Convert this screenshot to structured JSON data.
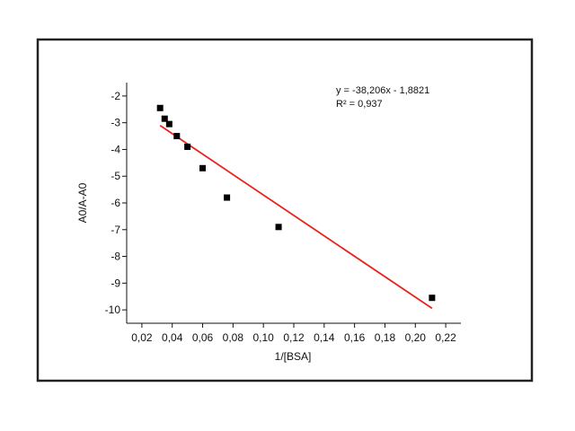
{
  "chart_data": {
    "type": "scatter",
    "title": "",
    "xlabel": "1/[BSA]",
    "ylabel": "A0/A-A0",
    "xlim": [
      0.01,
      0.23
    ],
    "ylim": [
      -10.5,
      -1.5
    ],
    "x_ticks": [
      0.02,
      0.04,
      0.06,
      0.08,
      0.1,
      0.12,
      0.14,
      0.16,
      0.18,
      0.2,
      0.22
    ],
    "x_tick_labels": [
      "0,02",
      "0,04",
      "0,06",
      "0,08",
      "0,10",
      "0,12",
      "0,14",
      "0,16",
      "0,18",
      "0,20",
      "0,22"
    ],
    "y_ticks": [
      -2,
      -3,
      -4,
      -5,
      -6,
      -7,
      -8,
      -9,
      -10
    ],
    "y_tick_labels": [
      "-2",
      "-3",
      "-4",
      "-5",
      "-6",
      "-7",
      "-8",
      "-9",
      "-10"
    ],
    "grid": false,
    "points": [
      {
        "x": 0.032,
        "y": -2.45
      },
      {
        "x": 0.035,
        "y": -2.85
      },
      {
        "x": 0.038,
        "y": -3.05
      },
      {
        "x": 0.043,
        "y": -3.5
      },
      {
        "x": 0.05,
        "y": -3.9
      },
      {
        "x": 0.06,
        "y": -4.7
      },
      {
        "x": 0.076,
        "y": -5.8
      },
      {
        "x": 0.11,
        "y": -6.9
      },
      {
        "x": 0.211,
        "y": -9.55
      }
    ],
    "marker_color": "#000000",
    "trendline": {
      "slope": -38.206,
      "intercept": -1.8821,
      "x_range": [
        0.032,
        0.211
      ],
      "color": "#e8231e"
    },
    "annotations": {
      "equation": "y = -38,206x - 1,8821",
      "r_squared": "R² = 0,937"
    }
  }
}
